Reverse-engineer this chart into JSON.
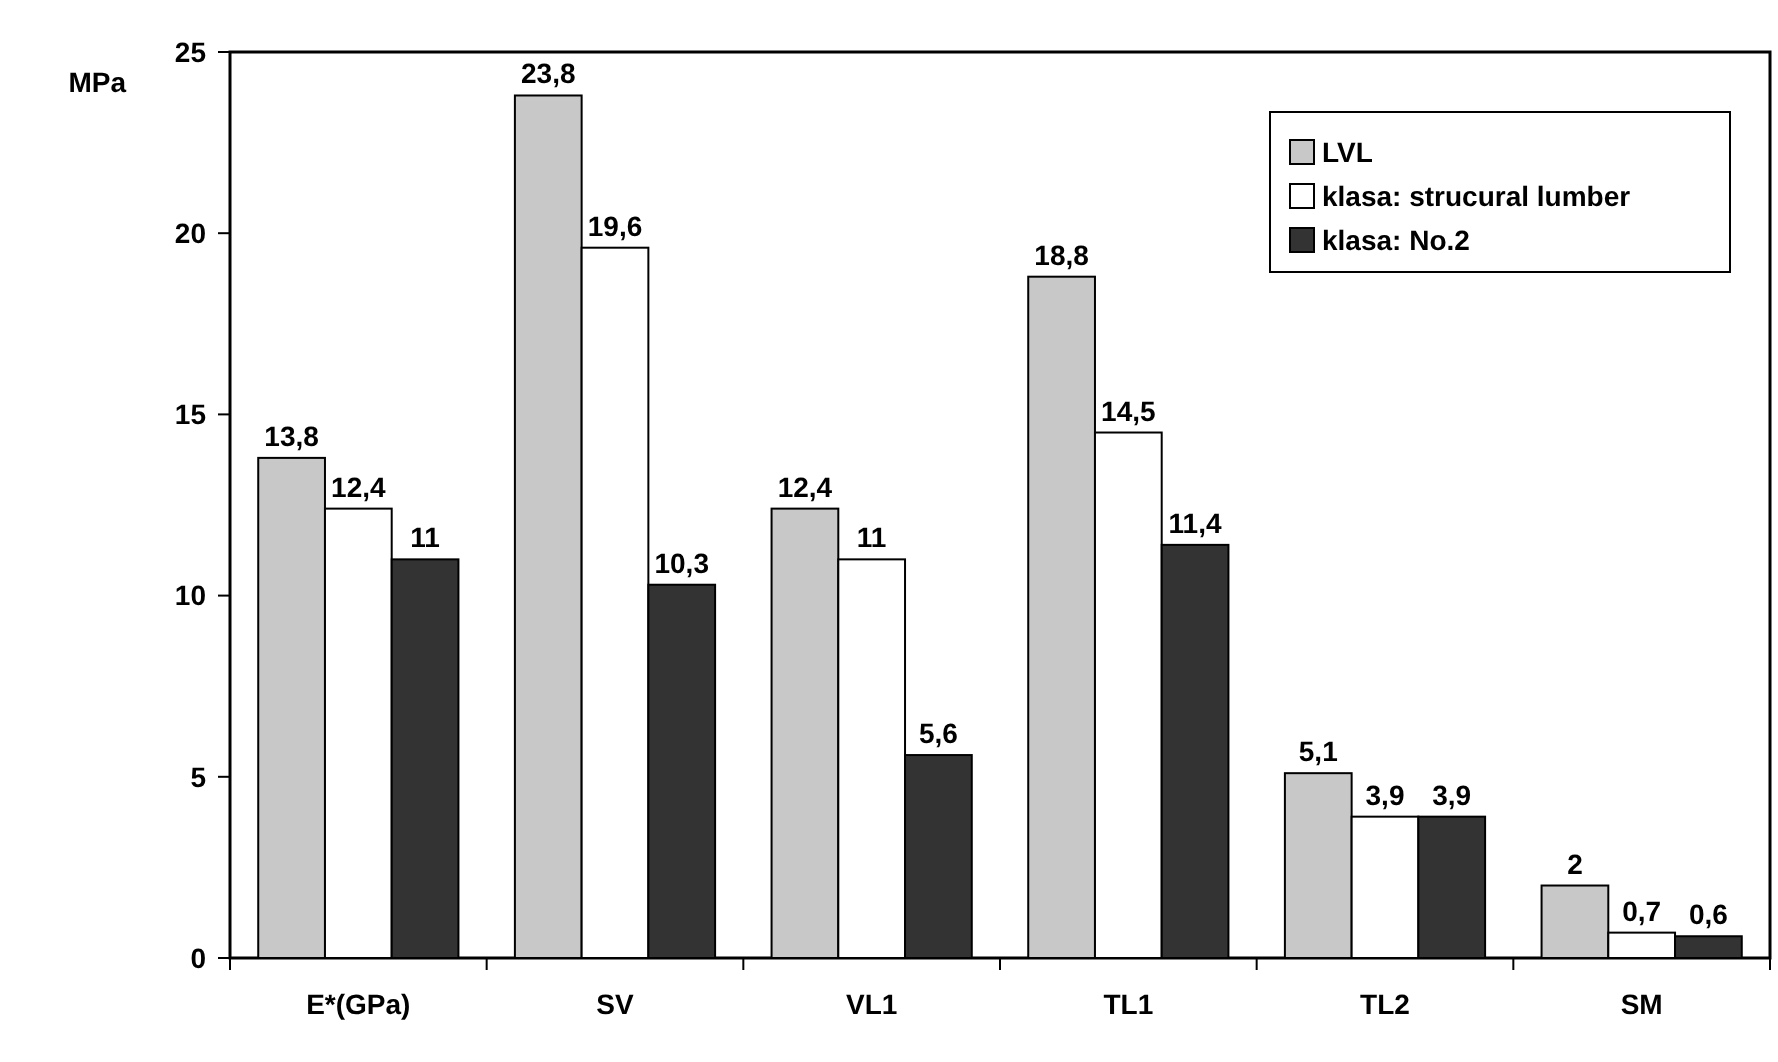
{
  "chart_data": {
    "type": "bar",
    "ylabel": "MPa",
    "categories": [
      "E*(GPa)",
      "SV",
      "VL1",
      "TL1",
      "TL2",
      "SM"
    ],
    "series": [
      {
        "name": "LVL",
        "color": "#c8c8c8",
        "values": [
          13.8,
          23.8,
          12.4,
          18.8,
          5.1,
          2
        ],
        "value_labels": [
          "13,8",
          "23,8",
          "12,4",
          "18,8",
          "5,1",
          "2"
        ]
      },
      {
        "name": "klasa: strucural lumber",
        "color": "#ffffff",
        "values": [
          12.4,
          19.6,
          11,
          14.5,
          3.9,
          0.7
        ],
        "value_labels": [
          "12,4",
          "19,6",
          "11",
          "14,5",
          "3,9",
          "0,7"
        ]
      },
      {
        "name": "klasa: No.2",
        "color": "#333333",
        "values": [
          11,
          10.3,
          5.6,
          11.4,
          3.9,
          0.6
        ],
        "value_labels": [
          "11",
          "10,3",
          "5,6",
          "11,4",
          "3,9",
          "0,6"
        ]
      }
    ],
    "ylim": [
      0,
      25
    ],
    "yticks": [
      0,
      5,
      10,
      15,
      20,
      25
    ],
    "grid": false,
    "legend": "top right"
  }
}
